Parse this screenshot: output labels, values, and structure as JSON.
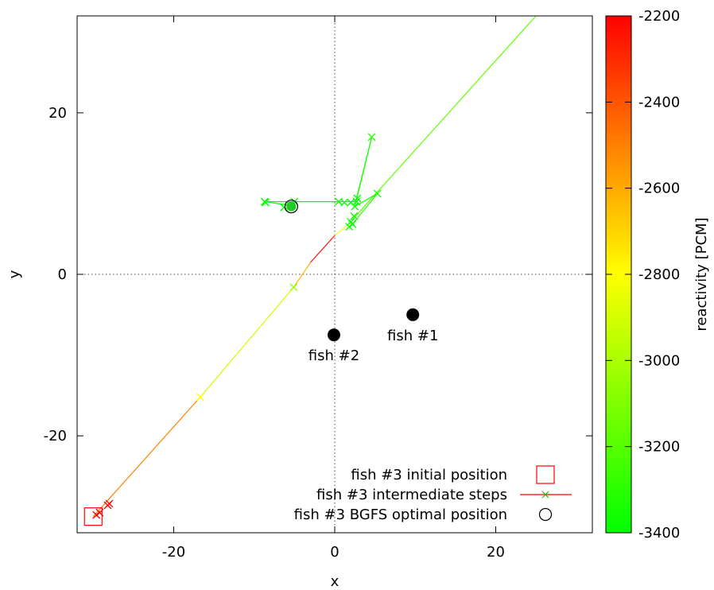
{
  "chart_data": {
    "type": "scatter",
    "xlabel": "x",
    "ylabel": "y",
    "xlim": [
      -32,
      32
    ],
    "ylim": [
      -32,
      32
    ],
    "xticks": [
      -20,
      0,
      20
    ],
    "yticks": [
      -20,
      0,
      20
    ],
    "grid": false,
    "zero_axes": true,
    "legend_position": "bottom-right",
    "colorbar": {
      "label": "reactivity [PCM]",
      "range": [
        -3400,
        -2200
      ],
      "ticks": [
        -2200,
        -2400,
        -2600,
        -2800,
        -3000,
        -3200,
        -3400
      ],
      "colors": [
        "#00ff00",
        "#ffff00",
        "#ff0000"
      ]
    },
    "legend": [
      {
        "label": "fish #3 initial position",
        "marker": "square",
        "color": "#ff0000"
      },
      {
        "label": "fish #3 intermediate steps",
        "marker": "line-x",
        "color": "#ff0000"
      },
      {
        "label": "fish #3 BGFS optimal position",
        "marker": "circle",
        "color": "#000000"
      }
    ],
    "fixed_points": [
      {
        "label": "fish #1",
        "x": 9.7,
        "y": -5.0
      },
      {
        "label": "fish #2",
        "x": -0.1,
        "y": -7.5
      }
    ],
    "initial_position": {
      "x": -30.0,
      "y": -30.0
    },
    "optimal_position": {
      "x": -5.4,
      "y": 8.4
    },
    "search_line": {
      "points": [
        {
          "x": -30.0,
          "y": -30.0,
          "r": -2200
        },
        {
          "x": -16.7,
          "y": -15.2,
          "r": -2800
        },
        {
          "x": -5.1,
          "y": -1.6,
          "r": -3050
        },
        {
          "x": -3.0,
          "y": 1.5,
          "r": -2200
        },
        {
          "x": 0.0,
          "y": 4.8,
          "r": -2250
        },
        {
          "x": 1.5,
          "y": 6.0,
          "r": -3350
        },
        {
          "x": 25.0,
          "y": 32.0,
          "r": -3000
        }
      ]
    },
    "search_path": {
      "points": [
        {
          "x": 2.2,
          "y": 6.2,
          "r": -3300
        },
        {
          "x": 5.3,
          "y": 10.0,
          "r": -3350
        },
        {
          "x": 2.5,
          "y": 8.4,
          "r": -3380
        },
        {
          "x": 4.6,
          "y": 17.0,
          "r": -3300
        },
        {
          "x": 2.6,
          "y": 9.0,
          "r": -3380
        },
        {
          "x": 0.5,
          "y": 9.0,
          "r": -3380
        },
        {
          "x": -5.0,
          "y": 9.0,
          "r": -3400
        },
        {
          "x": -8.7,
          "y": 9.0,
          "r": -3390
        },
        {
          "x": -5.3,
          "y": 8.5,
          "r": -3400
        }
      ]
    },
    "steps": [
      {
        "x": -29.6,
        "y": -29.8,
        "r": -2200
      },
      {
        "x": -29.2,
        "y": -29.5,
        "r": -2200
      },
      {
        "x": -28.2,
        "y": -28.6,
        "r": -2210
      },
      {
        "x": -28.0,
        "y": -28.4,
        "r": -2210
      },
      {
        "x": -16.7,
        "y": -15.2,
        "r": -2800
      },
      {
        "x": -5.1,
        "y": -1.6,
        "r": -3050
      },
      {
        "x": 5.3,
        "y": 10.0,
        "r": -3350
      },
      {
        "x": 4.6,
        "y": 17.0,
        "r": -3300
      },
      {
        "x": 1.8,
        "y": 5.9,
        "r": -3350
      },
      {
        "x": 2.0,
        "y": 6.5,
        "r": -3380
      },
      {
        "x": 2.2,
        "y": 6.2,
        "r": -3380
      },
      {
        "x": 2.4,
        "y": 7.2,
        "r": -3380
      },
      {
        "x": 2.5,
        "y": 8.4,
        "r": -3390
      },
      {
        "x": 2.7,
        "y": 9.0,
        "r": -3390
      },
      {
        "x": 2.8,
        "y": 9.4,
        "r": -3390
      },
      {
        "x": 2.0,
        "y": 8.9,
        "r": -3390
      },
      {
        "x": 1.2,
        "y": 8.9,
        "r": -3390
      },
      {
        "x": 0.5,
        "y": 9.0,
        "r": -3390
      },
      {
        "x": -5.0,
        "y": 9.0,
        "r": -3400
      },
      {
        "x": -8.7,
        "y": 9.0,
        "r": -3390
      },
      {
        "x": -8.6,
        "y": 8.9,
        "r": -3390
      },
      {
        "x": -6.3,
        "y": 8.3,
        "r": -3400
      },
      {
        "x": -5.6,
        "y": 8.6,
        "r": -3400
      },
      {
        "x": -5.3,
        "y": 8.5,
        "r": -3400
      }
    ]
  }
}
